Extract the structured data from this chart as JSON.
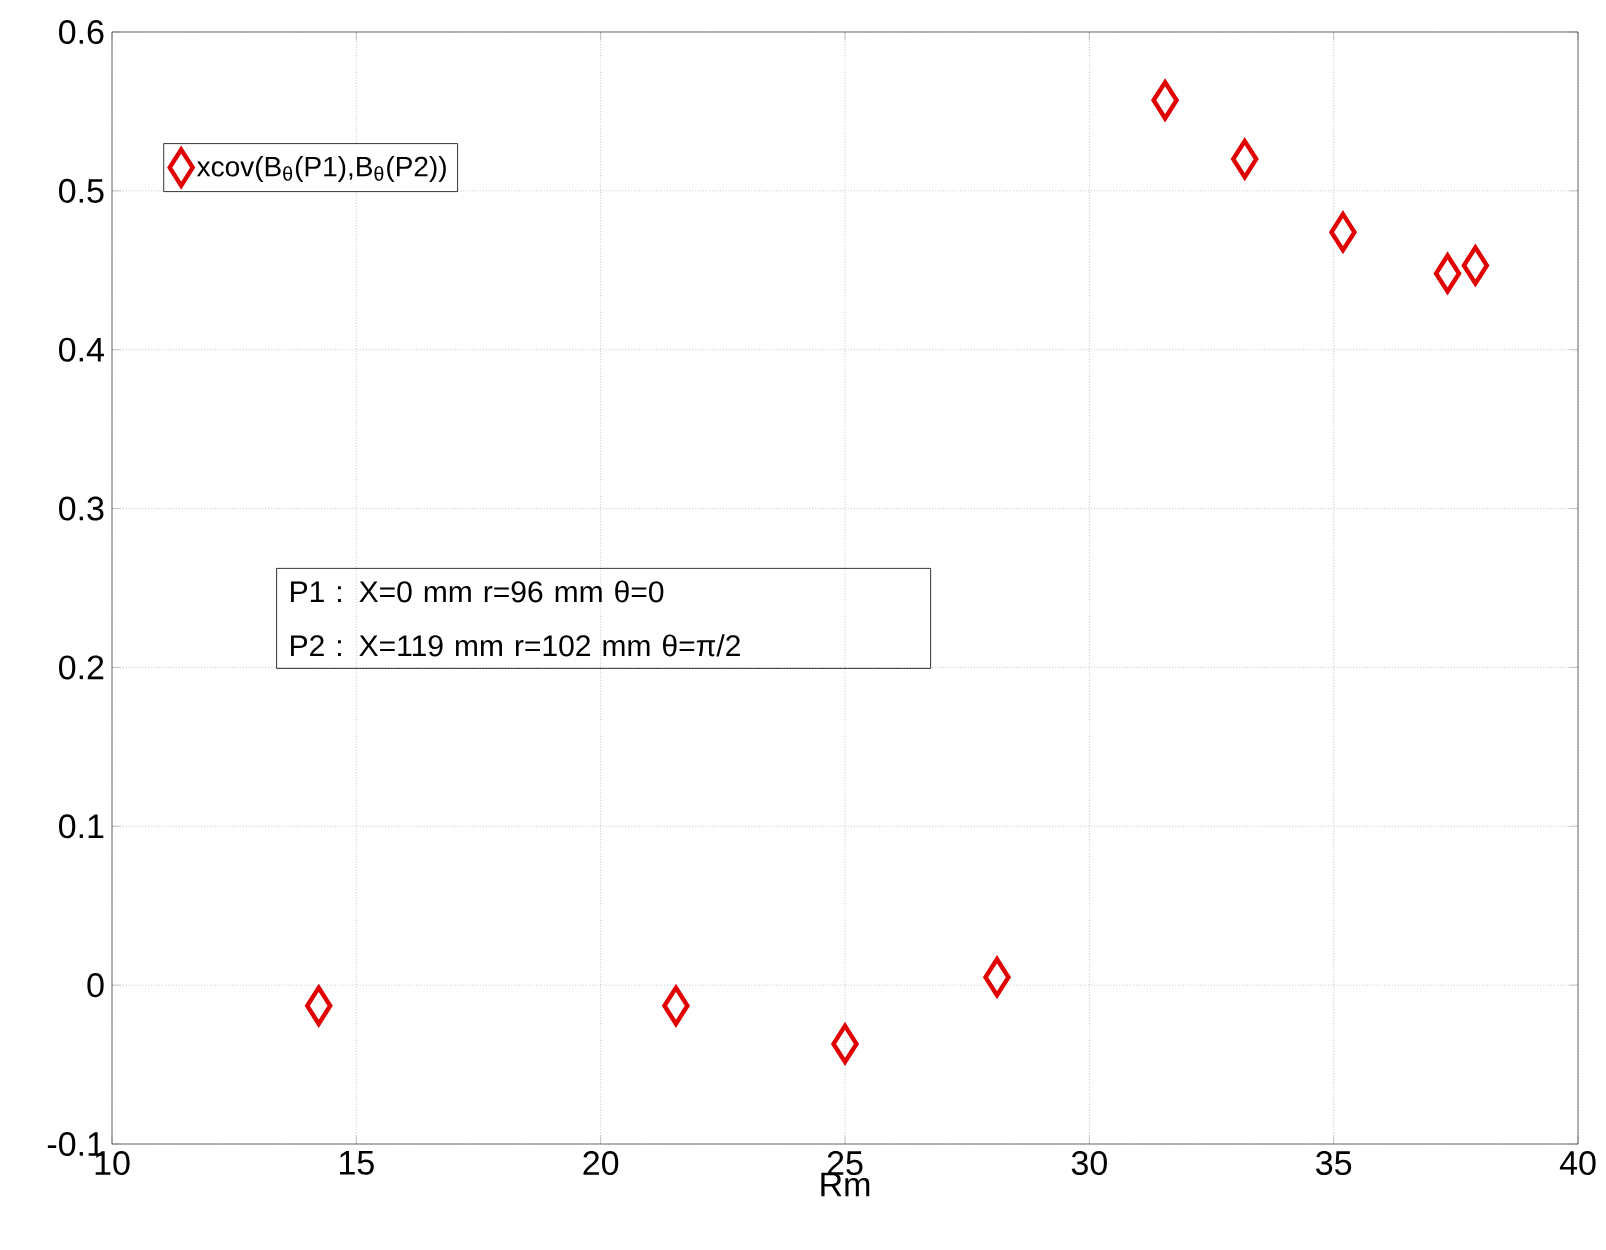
{
  "chart_data": {
    "type": "scatter",
    "xlabel": "Rm",
    "x": [
      14.23,
      21.54,
      25.0,
      28.11,
      31.55,
      33.18,
      35.19,
      37.33,
      37.9
    ],
    "series": [
      {
        "name": "xcov(B$_{θ}$(P1),B$_{θ}$(P2))",
        "color": "#e00000",
        "values": [
          -0.013,
          -0.013,
          -0.037,
          0.005,
          0.557,
          0.52,
          0.474,
          0.448,
          0.453
        ]
      }
    ],
    "xlim": [
      10,
      40
    ],
    "xticks": [
      10,
      15,
      20,
      25,
      30,
      35,
      40
    ],
    "ylim": [
      -0.1,
      0.6
    ],
    "yticks": [
      -0.1,
      0,
      0.1,
      0.2,
      0.3,
      0.4,
      0.5,
      0.6
    ],
    "grid": true,
    "legend": "top left",
    "marker": "diamond",
    "annotations": [
      "P1 : X=0 mm  r=96 mm  θ=0",
      "P2 : X=119 mm  r=102 mm θ=π/2"
    ]
  }
}
